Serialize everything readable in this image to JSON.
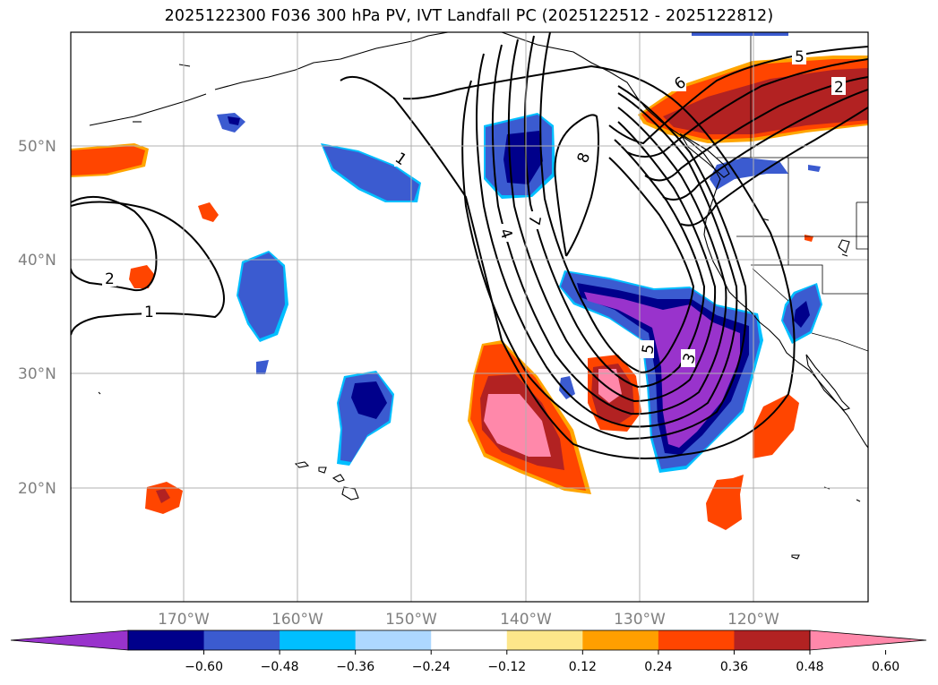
{
  "title": "2025122300 F036 300 hPa PV, IVT Landfall PC (2025122512 - 2025122812)",
  "lat_labels": [
    "50°N",
    "40°N",
    "30°N",
    "20°N"
  ],
  "lon_labels": [
    "170°W",
    "160°W",
    "150°W",
    "140°W",
    "130°W",
    "120°W"
  ],
  "colorbar": {
    "colors": [
      "#9933cc",
      "#00008b",
      "#3b5bd0",
      "#00bfff",
      "#add8ff",
      "#ffffff",
      "#fde68a",
      "#ff9f00",
      "#ff4500",
      "#b22222",
      "#ff88aa"
    ],
    "tick_labels": [
      "−0.60",
      "−0.48",
      "−0.36",
      "−0.24",
      "−0.12",
      "0.12",
      "0.24",
      "0.36",
      "0.48",
      "0.60"
    ]
  },
  "contour_labels": [
    "1",
    "1",
    "2",
    "2",
    "3",
    "4",
    "5",
    "5",
    "6",
    "7",
    "8"
  ],
  "colors": {
    "grid": "#b0b0b0",
    "coast": "#000000",
    "contour": "#000000"
  }
}
